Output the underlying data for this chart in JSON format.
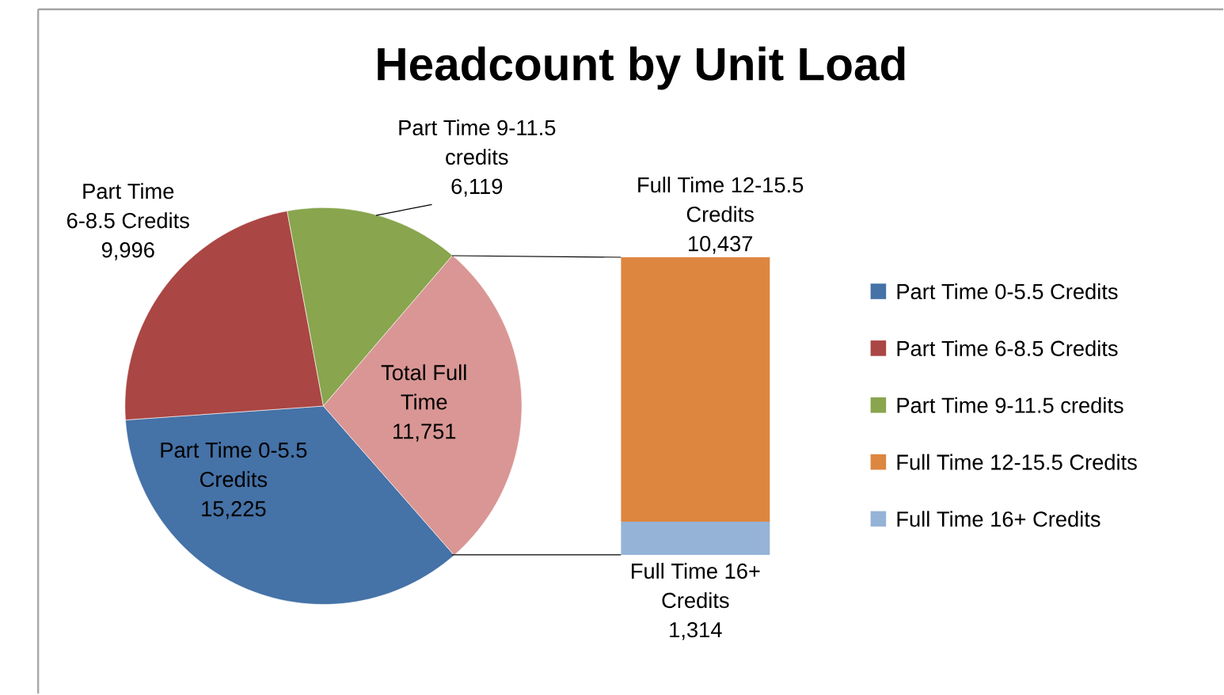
{
  "chart_data": [
    {
      "type": "pie",
      "title": "Headcount by Unit Load",
      "categories": [
        "Part Time 0-5.5 Credits",
        "Part Time 6-8.5 Credits",
        "Part Time 9-11.5 credits",
        "Total Full Time"
      ],
      "values": [
        15225,
        9996,
        6119,
        11751
      ],
      "value_labels": [
        "15,225",
        "9,996",
        "6,119",
        "11,751"
      ],
      "colors": [
        "#4572a7",
        "#aa4643",
        "#89a54e",
        "#d99694"
      ],
      "legend": "right"
    },
    {
      "type": "bar",
      "categories": [
        null
      ],
      "stacked": true,
      "legend": "right",
      "series": [
        {
          "name": "Full Time 16+ Credits",
          "color": "#95b3d7",
          "values": [
            1314
          ],
          "value_labels": [
            "1,314"
          ]
        },
        {
          "name": "Full Time 12-15.5 Credits",
          "color": "#dd8640",
          "values": [
            10437
          ],
          "value_labels": [
            "10,437"
          ]
        }
      ]
    }
  ]
}
